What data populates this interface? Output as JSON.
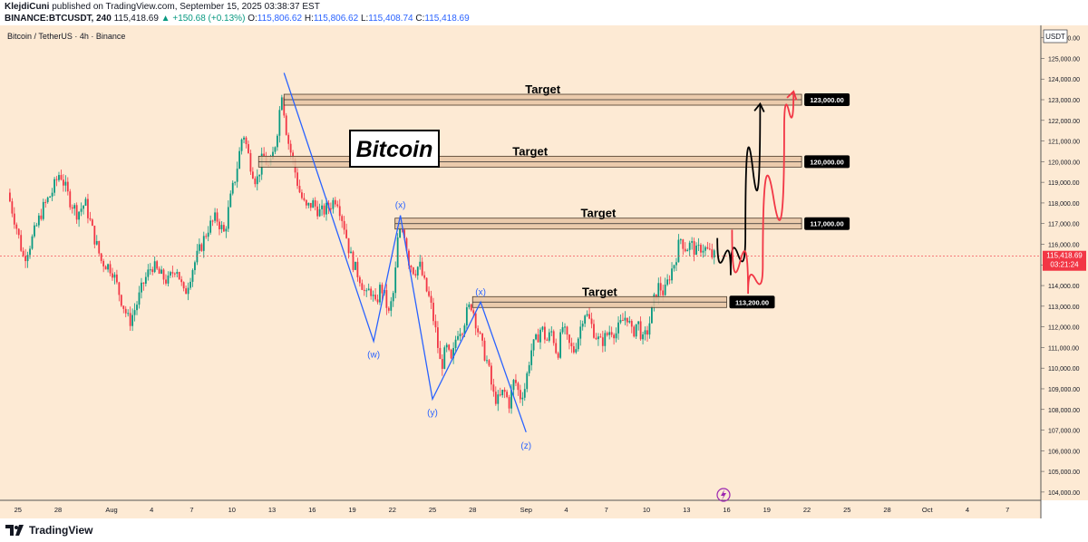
{
  "header": {
    "publisher": "KlejdiCuni",
    "published_text": "published on TradingView.com, September 15, 2025 03:38:37 EST",
    "symbol": "BINANCE:BTCUSDT, 240",
    "last": "115,418.69",
    "change": "▲ +150.68 (+0.13%)",
    "o_label": "O:",
    "o": "115,806.62",
    "h_label": "H:",
    "h": "115,806.62",
    "l_label": "L:",
    "l": "115,408.74",
    "c_label": "C:",
    "c": "115,418.69"
  },
  "chart_title": "Bitcoin / TetherUS · 4h · Binance",
  "footer": {
    "brand": "TradingView"
  },
  "chart_data": {
    "type": "candlestick",
    "currency_label": "USDT",
    "ylim": [
      103600,
      126600
    ],
    "y_ticks": [
      104000,
      105000,
      106000,
      107000,
      108000,
      109000,
      110000,
      111000,
      112000,
      113000,
      114000,
      115000,
      116000,
      117000,
      118000,
      119000,
      120000,
      121000,
      122000,
      123000,
      124000,
      125000,
      126000
    ],
    "y_tick_labels": [
      "104,000.00",
      "105,000.00",
      "106,000.00",
      "107,000.00",
      "108,000.00",
      "109,000.00",
      "110,000.00",
      "111,000.00",
      "112,000.00",
      "113,000.00",
      "114,000.00",
      "115,000.00",
      "116,000.00",
      "117,000.00",
      "118,000.00",
      "119,000.00",
      "120,000.00",
      "121,000.00",
      "122,000.00",
      "123,000.00",
      "124,000.00",
      "125,000.00",
      "126,000.00"
    ],
    "x_ticks": [
      {
        "label": "25",
        "day": -7
      },
      {
        "label": "28",
        "day": -4
      },
      {
        "label": "Aug",
        "day": 0
      },
      {
        "label": "4",
        "day": 3
      },
      {
        "label": "7",
        "day": 6
      },
      {
        "label": "10",
        "day": 9
      },
      {
        "label": "13",
        "day": 12
      },
      {
        "label": "16",
        "day": 15
      },
      {
        "label": "19",
        "day": 18
      },
      {
        "label": "22",
        "day": 21
      },
      {
        "label": "25",
        "day": 24
      },
      {
        "label": "28",
        "day": 27
      },
      {
        "label": "Sep",
        "day": 31
      },
      {
        "label": "4",
        "day": 34
      },
      {
        "label": "7",
        "day": 37
      },
      {
        "label": "10",
        "day": 40
      },
      {
        "label": "13",
        "day": 43
      },
      {
        "label": "16",
        "day": 46
      },
      {
        "label": "19",
        "day": 49
      },
      {
        "label": "22",
        "day": 52
      },
      {
        "label": "25",
        "day": 55
      },
      {
        "label": "28",
        "day": 58
      },
      {
        "label": "Oct",
        "day": 61
      },
      {
        "label": "4",
        "day": 64
      },
      {
        "label": "7",
        "day": 67
      }
    ],
    "price_path": [
      [
        -7.6,
        118500
      ],
      [
        -7.0,
        117000
      ],
      [
        -6.4,
        115300
      ],
      [
        -5.8,
        116200
      ],
      [
        -5.0,
        117700
      ],
      [
        -4.3,
        118500
      ],
      [
        -3.7,
        119500
      ],
      [
        -3.0,
        118200
      ],
      [
        -2.4,
        117500
      ],
      [
        -1.8,
        118000
      ],
      [
        -1.2,
        116500
      ],
      [
        -0.6,
        115200
      ],
      [
        0.2,
        114800
      ],
      [
        0.8,
        113500
      ],
      [
        1.5,
        112200
      ],
      [
        2.0,
        113000
      ],
      [
        2.6,
        114200
      ],
      [
        3.2,
        115000
      ],
      [
        3.8,
        114500
      ],
      [
        4.4,
        114200
      ],
      [
        5.0,
        115000
      ],
      [
        5.6,
        113500
      ],
      [
        6.2,
        114800
      ],
      [
        6.8,
        115800
      ],
      [
        7.4,
        116800
      ],
      [
        8.0,
        117300
      ],
      [
        8.6,
        116500
      ],
      [
        9.0,
        118000
      ],
      [
        9.5,
        119500
      ],
      [
        10.0,
        121500
      ],
      [
        10.5,
        120000
      ],
      [
        11.0,
        119000
      ],
      [
        11.5,
        120300
      ],
      [
        12.0,
        119600
      ],
      [
        12.5,
        121200
      ],
      [
        12.9,
        123400
      ],
      [
        13.3,
        121200
      ],
      [
        13.7,
        120100
      ],
      [
        14.2,
        118600
      ],
      [
        14.7,
        117700
      ],
      [
        15.2,
        118000
      ],
      [
        15.8,
        117500
      ],
      [
        16.4,
        117800
      ],
      [
        17.0,
        118300
      ],
      [
        17.6,
        116800
      ],
      [
        18.0,
        115500
      ],
      [
        18.4,
        114800
      ],
      [
        18.8,
        114300
      ],
      [
        19.2,
        113400
      ],
      [
        19.5,
        113900
      ],
      [
        19.9,
        113000
      ],
      [
        20.3,
        114000
      ],
      [
        20.6,
        113400
      ],
      [
        20.9,
        112600
      ],
      [
        21.3,
        113800
      ],
      [
        21.6,
        116500
      ],
      [
        22.0,
        116800
      ],
      [
        22.4,
        115200
      ],
      [
        22.8,
        114700
      ],
      [
        23.2,
        115000
      ],
      [
        23.6,
        114000
      ],
      [
        24.0,
        113200
      ],
      [
        24.4,
        111800
      ],
      [
        24.8,
        110000
      ],
      [
        25.2,
        111000
      ],
      [
        25.6,
        110200
      ],
      [
        26.0,
        111800
      ],
      [
        26.4,
        112000
      ],
      [
        26.8,
        112800
      ],
      [
        27.1,
        113100
      ],
      [
        27.5,
        112000
      ],
      [
        27.9,
        111000
      ],
      [
        28.3,
        110200
      ],
      [
        28.7,
        108700
      ],
      [
        29.1,
        108400
      ],
      [
        29.5,
        108900
      ],
      [
        29.9,
        108300
      ],
      [
        30.3,
        109500
      ],
      [
        30.7,
        108600
      ],
      [
        31.1,
        109100
      ],
      [
        31.5,
        110800
      ],
      [
        31.9,
        111300
      ],
      [
        32.3,
        112000
      ],
      [
        32.7,
        111300
      ],
      [
        33.1,
        111800
      ],
      [
        33.5,
        110600
      ],
      [
        33.9,
        112000
      ],
      [
        34.3,
        111200
      ],
      [
        34.7,
        110800
      ],
      [
        35.1,
        111600
      ],
      [
        35.5,
        112800
      ],
      [
        35.9,
        112300
      ],
      [
        36.3,
        111700
      ],
      [
        36.7,
        111200
      ],
      [
        37.1,
        111500
      ],
      [
        37.5,
        111900
      ],
      [
        37.9,
        111700
      ],
      [
        38.3,
        112200
      ],
      [
        38.7,
        112600
      ],
      [
        39.1,
        111600
      ],
      [
        39.5,
        112300
      ],
      [
        39.9,
        111300
      ],
      [
        40.3,
        111900
      ],
      [
        40.7,
        113200
      ],
      [
        41.1,
        114000
      ],
      [
        41.5,
        113600
      ],
      [
        41.9,
        114500
      ],
      [
        42.3,
        115200
      ],
      [
        42.7,
        116300
      ],
      [
        43.1,
        115800
      ],
      [
        43.5,
        116000
      ],
      [
        43.9,
        115600
      ],
      [
        44.3,
        115900
      ],
      [
        44.7,
        115700
      ],
      [
        45.1,
        115419
      ]
    ],
    "targets": [
      {
        "label": "Target",
        "price": 123000,
        "price_label": "123,000.00",
        "start_day": 12.9,
        "end_day": 51.6
      },
      {
        "label": "Target",
        "price": 120000,
        "price_label": "120,000.00",
        "start_day": 11.0,
        "end_day": 51.6
      },
      {
        "label": "Target",
        "price": 117000,
        "price_label": "117,000.00",
        "start_day": 21.2,
        "end_day": 51.6
      },
      {
        "label": "Target",
        "price": 113200,
        "price_label": "113,200.00",
        "start_day": 27.0,
        "end_day": 46.0
      }
    ],
    "current_price_label": "115,418.69",
    "countdown_label": "03:21:24",
    "annotation": "Bitcoin",
    "wave_path": [
      {
        "day": 12.9,
        "price": 124300,
        "label": ""
      },
      {
        "day": 19.6,
        "price": 111300,
        "label": "(w)"
      },
      {
        "day": 21.6,
        "price": 117400,
        "label": "(x)"
      },
      {
        "day": 24.0,
        "price": 108500,
        "label": "(y)"
      },
      {
        "day": 27.6,
        "price": 113200,
        "label": "(x)"
      },
      {
        "day": 31.0,
        "price": 106900,
        "label": "(z)"
      }
    ],
    "projections": [
      {
        "name": "black",
        "color": "#000000",
        "path": [
          [
            45.3,
            116300
          ],
          [
            46.3,
            114500
          ],
          [
            47.4,
            116500
          ],
          [
            48.5,
            122800
          ]
        ]
      },
      {
        "name": "red",
        "color": "#f23645",
        "path": [
          [
            46.4,
            116700
          ],
          [
            47.6,
            113600
          ],
          [
            48.7,
            115000
          ],
          [
            50.3,
            121500
          ],
          [
            51.0,
            123400
          ]
        ]
      }
    ]
  },
  "colors": {
    "background": "#fdead4",
    "up": "#089981",
    "down": "#f23645",
    "wave": "#2962ff",
    "zone_fill": "#e8c5a4",
    "zone_stroke": "#4a3a2a"
  }
}
